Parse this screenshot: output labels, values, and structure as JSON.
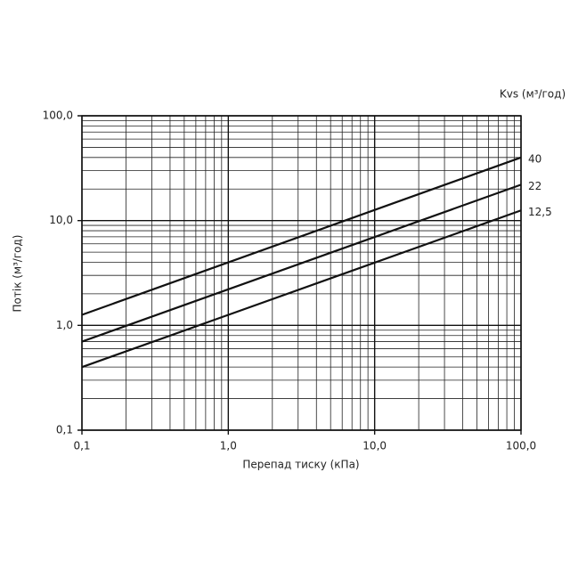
{
  "chart_data": {
    "type": "line",
    "x_label": "Перепад тиску (кПа)",
    "y_label": "Потік (м³/год)",
    "legend_title": "Kvs (м³/год)",
    "log_x": true,
    "log_y": true,
    "grid": true,
    "xlim": [
      0.1,
      100
    ],
    "ylim": [
      0.1,
      100
    ],
    "xticks": [
      {
        "value": 0.1,
        "label": "0,1"
      },
      {
        "value": 1,
        "label": "1,0"
      },
      {
        "value": 10,
        "label": "10,0"
      },
      {
        "value": 100,
        "label": "100,0"
      }
    ],
    "yticks": [
      {
        "value": 0.1,
        "label": "0,1"
      },
      {
        "value": 1,
        "label": "1,0"
      },
      {
        "value": 10,
        "label": "10,0"
      },
      {
        "value": 100,
        "label": "100,0"
      }
    ],
    "x": [
      0.1,
      100
    ],
    "series": [
      {
        "name": "40",
        "color": "#111111",
        "values": [
          1.26,
          40
        ]
      },
      {
        "name": "22",
        "color": "#111111",
        "values": [
          0.7,
          22
        ]
      },
      {
        "name": "12,5",
        "color": "#111111",
        "values": [
          0.4,
          12.5
        ]
      }
    ]
  }
}
